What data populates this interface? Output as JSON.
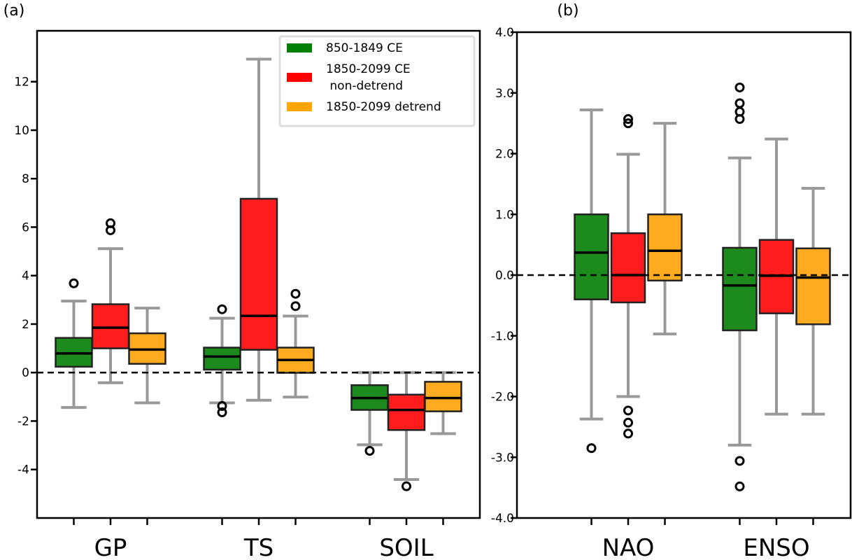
{
  "chart_data": [
    {
      "type": "box",
      "panel_label": "(a)",
      "ylim": [
        -6,
        14.1
      ],
      "yticks": [
        -4,
        -2,
        0,
        2,
        4,
        6,
        8,
        10,
        12
      ],
      "ytick_labels": [
        "-4",
        "-2",
        "0",
        "2",
        "4",
        "6",
        "8",
        "10",
        "12"
      ],
      "categories": [
        "GP",
        "TS",
        "SOIL"
      ],
      "reference_line": 0,
      "legend": {
        "placement": "top-right",
        "entries": [
          {
            "label_lines": [
              "850-1849 CE"
            ],
            "color": "#008000"
          },
          {
            "label_lines": [
              "1850-2099 CE",
              " non-detrend"
            ],
            "color": "#ff0000"
          },
          {
            "label_lines": [
              "1850-2099 detrend"
            ],
            "color": "#ffa500"
          }
        ]
      },
      "series": [
        {
          "color": "#1c8a1c",
          "boxes": [
            {
              "whislo": -1.44,
              "q1": 0.24,
              "med": 0.79,
              "q3": 1.43,
              "whishi": 2.95,
              "fliers": [
                3.68
              ]
            },
            {
              "whislo": -1.25,
              "q1": 0.12,
              "med": 0.66,
              "q3": 1.03,
              "whishi": 2.24,
              "fliers": [
                2.61,
                -1.38,
                -1.64
              ]
            },
            {
              "whislo": -2.98,
              "q1": -1.54,
              "med": -1.05,
              "q3": -0.52,
              "whishi": 0.0,
              "fliers": [
                -3.23
              ]
            }
          ]
        },
        {
          "color": "#ff1c1c",
          "boxes": [
            {
              "whislo": -0.42,
              "q1": 1.0,
              "med": 1.85,
              "q3": 2.82,
              "whishi": 5.11,
              "fliers": [
                6.16,
                5.87
              ]
            },
            {
              "whislo": -1.14,
              "q1": 0.94,
              "med": 2.34,
              "q3": 7.17,
              "whishi": 12.93,
              "fliers": []
            },
            {
              "whislo": -4.41,
              "q1": -2.37,
              "med": -1.54,
              "q3": -0.91,
              "whishi": 0.0,
              "fliers": [
                -4.69
              ]
            }
          ]
        },
        {
          "color": "#ffab1f",
          "boxes": [
            {
              "whislo": -1.25,
              "q1": 0.36,
              "med": 0.95,
              "q3": 1.62,
              "whishi": 2.66,
              "fliers": []
            },
            {
              "whislo": -1.01,
              "q1": -0.01,
              "med": 0.52,
              "q3": 1.03,
              "whishi": 2.33,
              "fliers": [
                3.25,
                2.74
              ]
            },
            {
              "whislo": -2.52,
              "q1": -1.6,
              "med": -1.05,
              "q3": -0.38,
              "whishi": 0.0,
              "fliers": []
            }
          ]
        }
      ]
    },
    {
      "type": "box",
      "panel_label": "(b)",
      "ylim": [
        -4.0,
        4.0
      ],
      "yticks": [
        -4,
        -3,
        -2,
        -1,
        0,
        1,
        2,
        3,
        4
      ],
      "ytick_labels": [
        "-4.0",
        "-3.0",
        "-2.0",
        "-1.0",
        "0.0",
        "1.0",
        "2.0",
        "3.0",
        "4.0"
      ],
      "categories": [
        "NAO",
        "ENSO"
      ],
      "reference_line": 0,
      "series": [
        {
          "color": "#1c8a1c",
          "boxes": [
            {
              "whislo": -2.37,
              "q1": -0.4,
              "med": 0.37,
              "q3": 1.0,
              "whishi": 2.72,
              "fliers": [
                -2.85
              ]
            },
            {
              "whislo": -2.8,
              "q1": -0.91,
              "med": -0.17,
              "q3": 0.45,
              "whishi": 1.93,
              "fliers": [
                3.09,
                2.83,
                2.69,
                2.57,
                -3.06,
                -3.48
              ]
            }
          ]
        },
        {
          "color": "#ff1c1c",
          "boxes": [
            {
              "whislo": -2.0,
              "q1": -0.45,
              "med": 0.0,
              "q3": 0.69,
              "whishi": 1.99,
              "fliers": [
                2.57,
                2.5,
                -2.23,
                -2.43,
                -2.61
              ]
            },
            {
              "whislo": -2.29,
              "q1": -0.63,
              "med": -0.01,
              "q3": 0.58,
              "whishi": 2.24,
              "fliers": []
            }
          ]
        },
        {
          "color": "#ffab1f",
          "boxes": [
            {
              "whislo": -0.97,
              "q1": -0.09,
              "med": 0.4,
              "q3": 1.0,
              "whishi": 2.5,
              "fliers": []
            },
            {
              "whislo": -2.29,
              "q1": -0.81,
              "med": -0.04,
              "q3": 0.44,
              "whishi": 1.43,
              "fliers": []
            }
          ]
        }
      ]
    }
  ]
}
